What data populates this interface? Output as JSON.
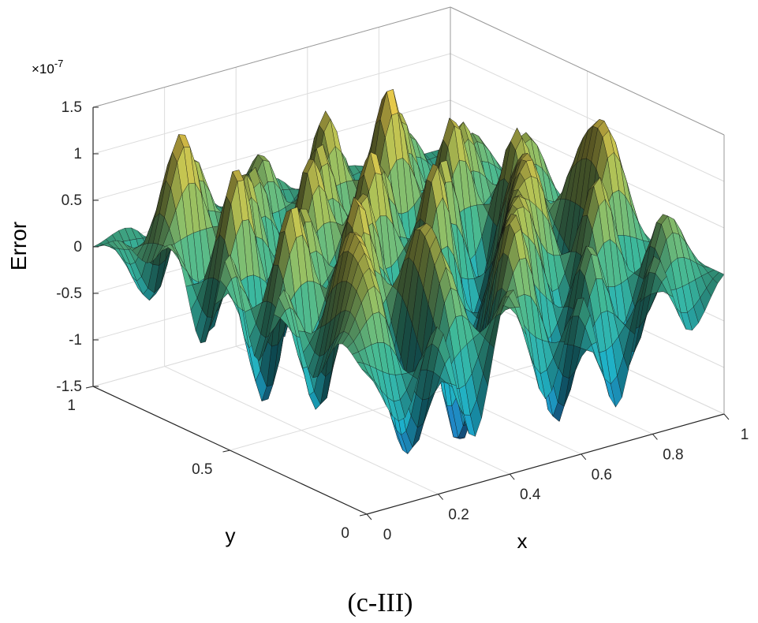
{
  "caption": "(c-III)",
  "chart_data": {
    "type": "surface",
    "title": "",
    "xlabel": "x",
    "ylabel": "y",
    "zlabel": "Error",
    "z_scale_label": "×10",
    "z_scale_exponent": "-7",
    "xlim": [
      0,
      1
    ],
    "ylim": [
      0,
      1
    ],
    "zlim": [
      -1.5,
      1.5
    ],
    "x_ticks": [
      "0",
      "0.2",
      "0.4",
      "0.6",
      "0.8",
      "1"
    ],
    "x_tick_values": [
      0,
      0.2,
      0.4,
      0.6,
      0.8,
      1
    ],
    "y_ticks": [
      "0",
      "0.5",
      "1"
    ],
    "y_tick_values": [
      0,
      0.5,
      1
    ],
    "z_ticks": [
      "-1.5",
      "-1",
      "-0.5",
      "0",
      "0.5",
      "1",
      "1.5"
    ],
    "z_tick_values": [
      -1.5,
      -1,
      -0.5,
      0,
      0.5,
      1,
      1.5
    ],
    "grid": true,
    "colormap": [
      "#1f5fb0",
      "#1aa0b8",
      "#3aa88a",
      "#9ab050",
      "#e0b840"
    ],
    "z_grid_note": "rows = y from 0 to 1, cols = x from 0 to 1, values ×1e-7 (approximate)",
    "z_grid": [
      [
        0,
        -0.6,
        0.3,
        -1.0,
        0.5,
        -0.8,
        0.2,
        -1.1,
        0.4,
        -0.5,
        0
      ],
      [
        0.2,
        0.8,
        -1.2,
        0.6,
        -0.4,
        1.0,
        -1.3,
        0.5,
        -0.9,
        0.6,
        0
      ],
      [
        -0.3,
        1.1,
        -0.5,
        1.0,
        -1.4,
        0.3,
        0.9,
        -0.6,
        1.0,
        -0.7,
        0
      ],
      [
        0.5,
        -0.9,
        1.3,
        -0.7,
        0.8,
        -1.0,
        0.4,
        1.1,
        -0.8,
        1.2,
        0
      ],
      [
        -0.4,
        1.2,
        -0.6,
        1.1,
        -0.9,
        1.2,
        -1.2,
        0.7,
        -0.3,
        0.9,
        0
      ],
      [
        0.6,
        -1.1,
        0.9,
        -0.4,
        1.3,
        -0.6,
        1.0,
        -0.9,
        1.1,
        -0.6,
        0
      ],
      [
        -0.5,
        1.3,
        -0.8,
        1.2,
        -0.5,
        0.9,
        -0.7,
        1.2,
        -0.5,
        0.8,
        0
      ],
      [
        0.4,
        -0.6,
        1.0,
        -0.9,
        1.1,
        -0.3,
        1.5,
        -0.6,
        0.9,
        -0.4,
        0
      ],
      [
        0.1,
        1.4,
        -0.4,
        0.8,
        -0.6,
        1.2,
        -0.8,
        1.0,
        -0.6,
        0.5,
        0
      ],
      [
        0.2,
        -0.5,
        0.9,
        -0.3,
        0.7,
        -0.5,
        0.6,
        -0.4,
        0.5,
        -0.2,
        0
      ],
      [
        0,
        0.1,
        -0.2,
        0.2,
        -0.1,
        0.2,
        -0.1,
        0.1,
        0,
        0,
        0
      ]
    ]
  }
}
